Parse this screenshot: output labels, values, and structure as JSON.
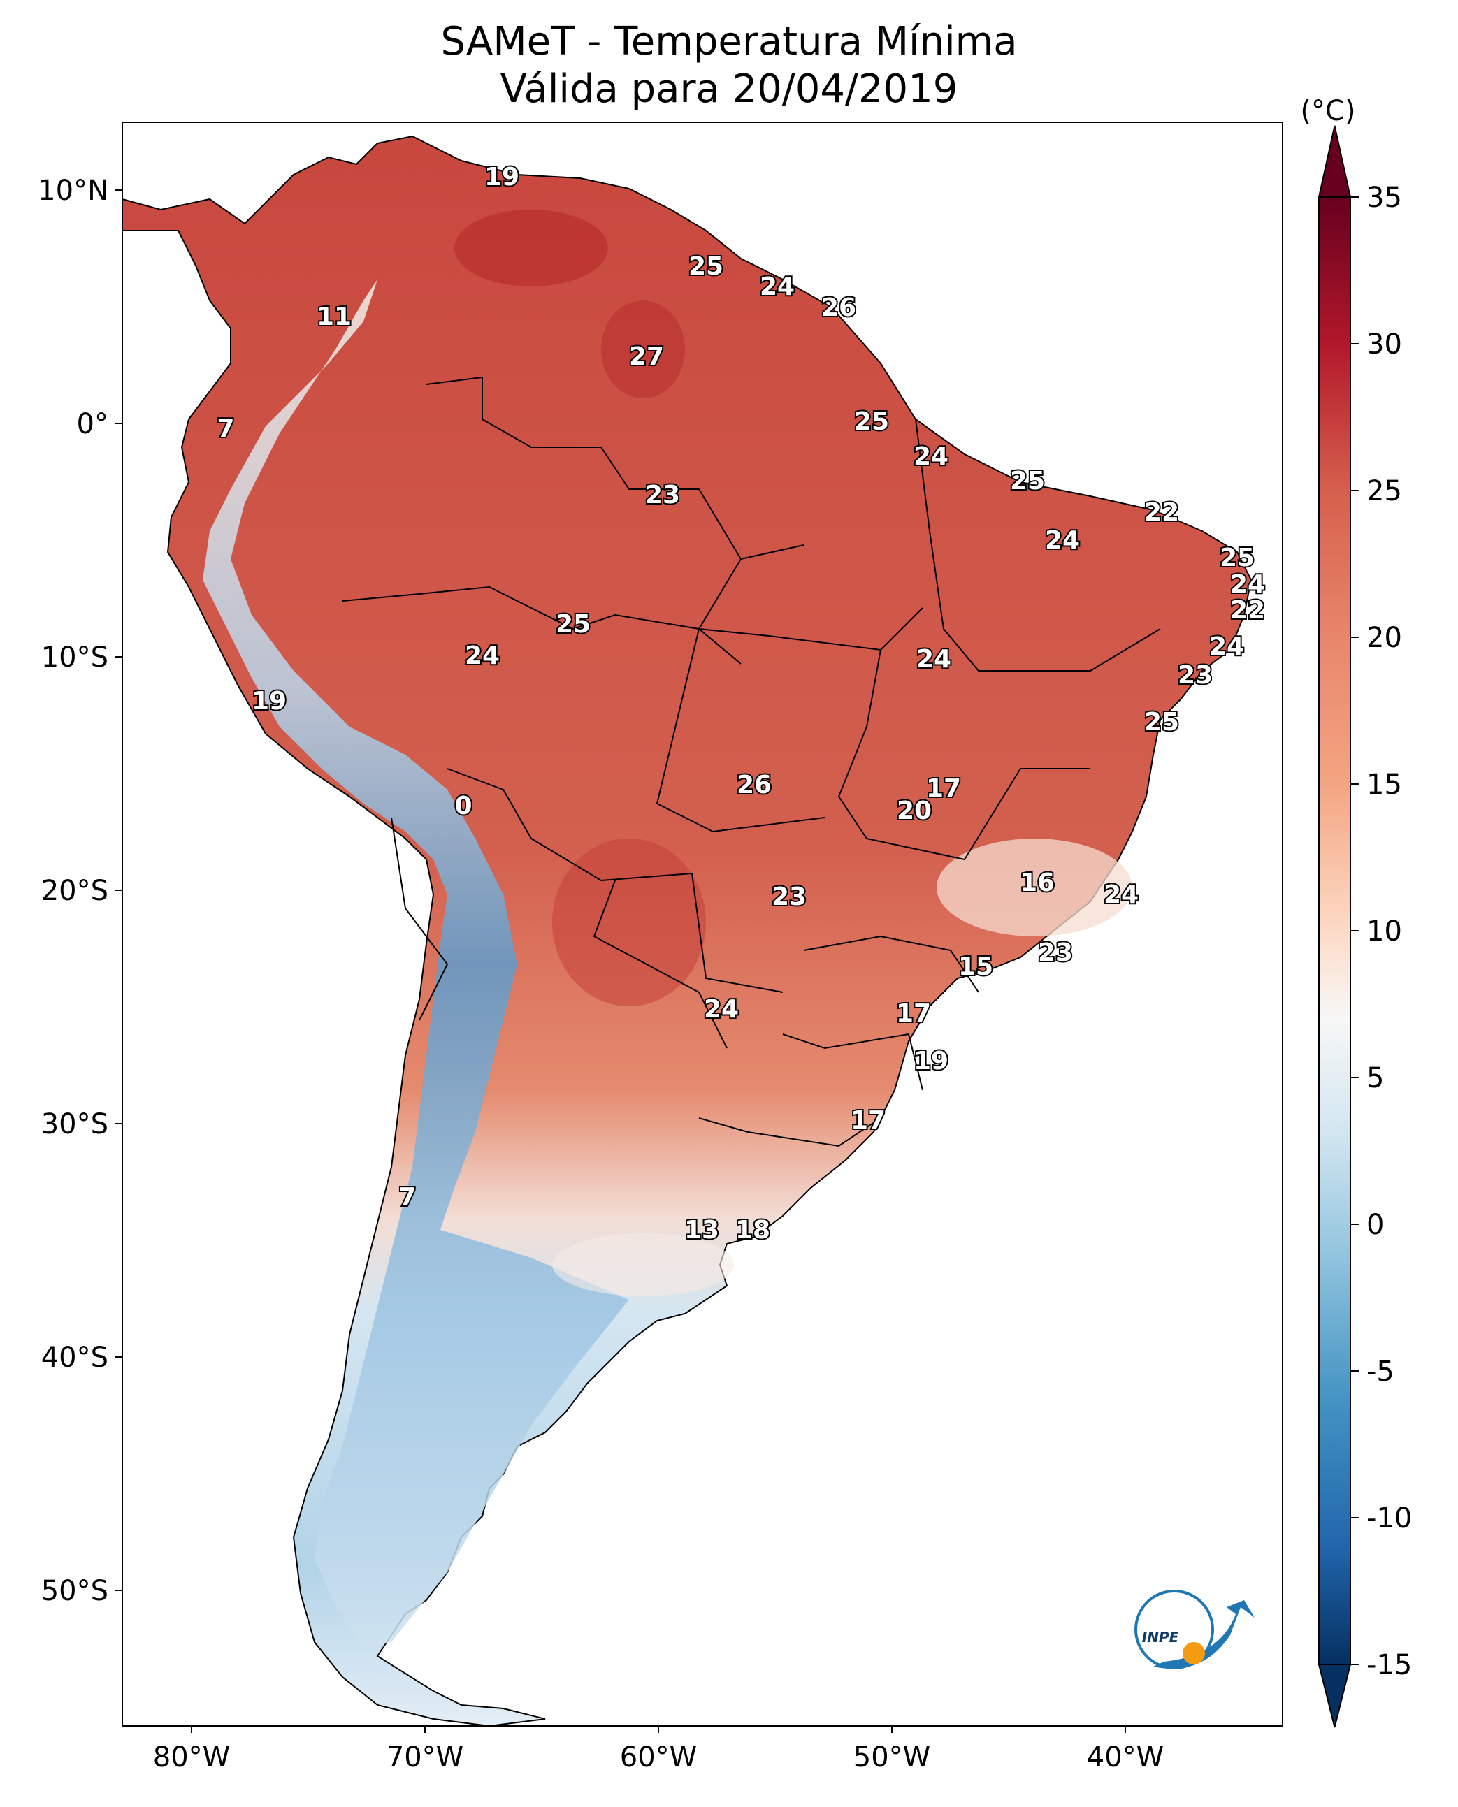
{
  "title": {
    "line1": "SAMeT - Temperatura Mínima",
    "line2": "Válida para 20/04/2019"
  },
  "colorbar": {
    "unit": "(°C)",
    "min": -15,
    "max": 35,
    "ticks": [
      "35",
      "30",
      "25",
      "20",
      "15",
      "10",
      "5",
      "0",
      "-5",
      "-10",
      "-15"
    ],
    "colors": [
      "#67001f",
      "#b2182b",
      "#d6604d",
      "#f4a582",
      "#fddbc7",
      "#f7f7f7",
      "#d1e5f0",
      "#92c5de",
      "#4393c3",
      "#2166ac",
      "#053061"
    ]
  },
  "axes": {
    "lat_labels": [
      "10°N",
      "0°",
      "10°S",
      "20°S",
      "30°S",
      "40°S",
      "50°S"
    ],
    "lon_labels": [
      "80°W",
      "70°W",
      "60°W",
      "50°W",
      "40°W"
    ]
  },
  "labels": [
    "19",
    "11",
    "7",
    "25",
    "24",
    "26",
    "27",
    "25",
    "24",
    "25",
    "23",
    "22",
    "24",
    "25",
    "24",
    "22",
    "24",
    "19",
    "25",
    "24",
    "24",
    "23",
    "25",
    "0",
    "26",
    "17",
    "20",
    "16",
    "24",
    "23",
    "15",
    "23",
    "24",
    "17",
    "19",
    "17",
    "7",
    "13",
    "18"
  ],
  "logo": {
    "text": "INPE"
  }
}
